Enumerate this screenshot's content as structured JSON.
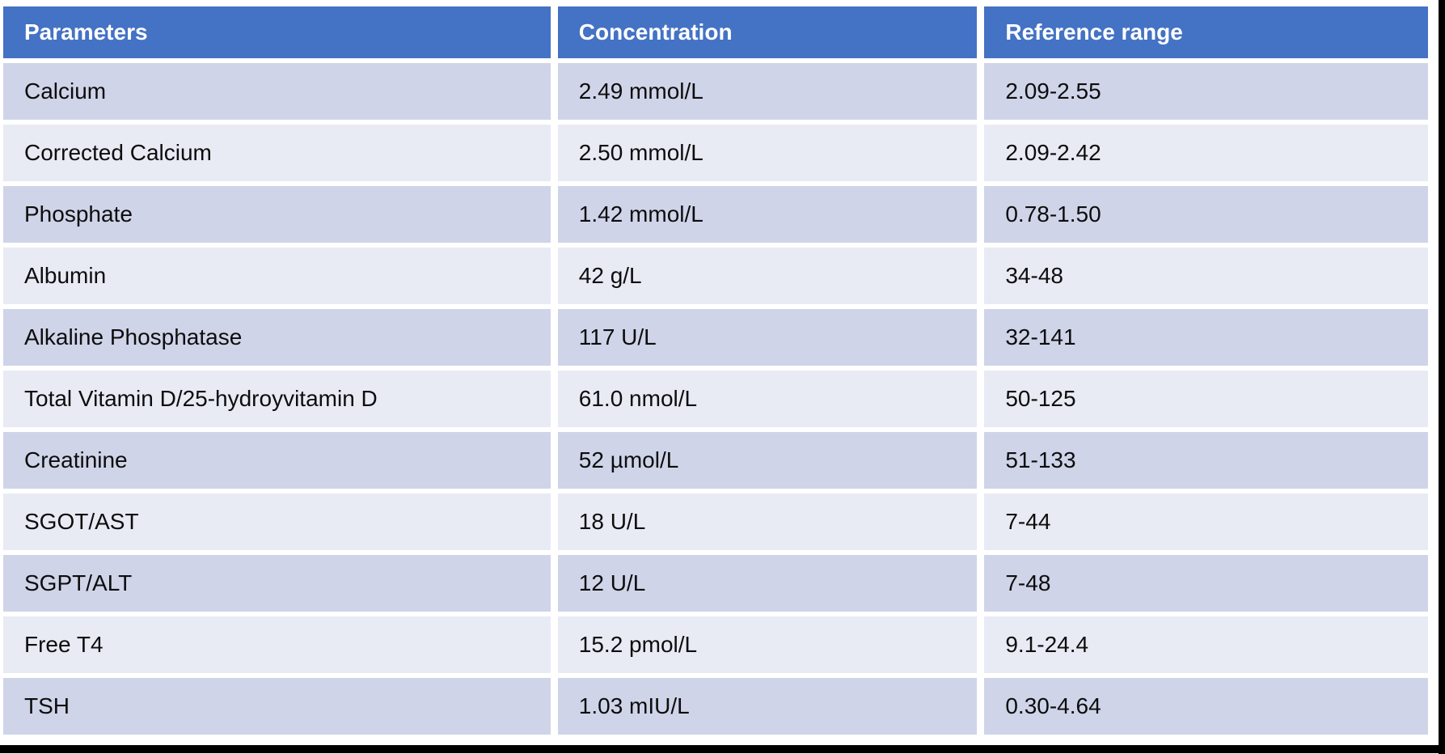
{
  "chart_data": {
    "type": "table",
    "columns": [
      "Parameters",
      "Concentration",
      "Reference range"
    ],
    "rows": [
      {
        "parameter": "Calcium",
        "concentration": "2.49 mmol/L",
        "reference_range": "2.09-2.55"
      },
      {
        "parameter": "Corrected Calcium",
        "concentration": "2.50 mmol/L",
        "reference_range": "2.09-2.42"
      },
      {
        "parameter": "Phosphate",
        "concentration": "1.42 mmol/L",
        "reference_range": "0.78-1.50"
      },
      {
        "parameter": "Albumin",
        "concentration": "42 g/L",
        "reference_range": "34-48"
      },
      {
        "parameter": "Alkaline Phosphatase",
        "concentration": "117 U/L",
        "reference_range": "32-141"
      },
      {
        "parameter": "Total Vitamin D/25-hydroyvitamin D",
        "concentration": "61.0 nmol/L",
        "reference_range": "50-125"
      },
      {
        "parameter": "Creatinine",
        "concentration": "52 µmol/L",
        "reference_range": "51-133"
      },
      {
        "parameter": "SGOT/AST",
        "concentration": "18 U/L",
        "reference_range": "7-44"
      },
      {
        "parameter": "SGPT/ALT",
        "concentration": "12 U/L",
        "reference_range": "7-48"
      },
      {
        "parameter": "Free T4",
        "concentration": "15.2 pmol/L",
        "reference_range": "9.1-24.4"
      },
      {
        "parameter": "TSH",
        "concentration": "1.03 mIU/L",
        "reference_range": "0.30-4.64"
      }
    ],
    "layout_hints": {
      "banded_rows": true,
      "band_color_odd": "#cfd4e9",
      "band_color_even": "#e8ebf4"
    }
  },
  "style": {
    "header_bg": "#4472c4",
    "header_text_color": "#ffffff",
    "body_text_color": "#0d0d0d",
    "cell_gap_color": "#ffffff",
    "edge_border_color": "#000000"
  }
}
